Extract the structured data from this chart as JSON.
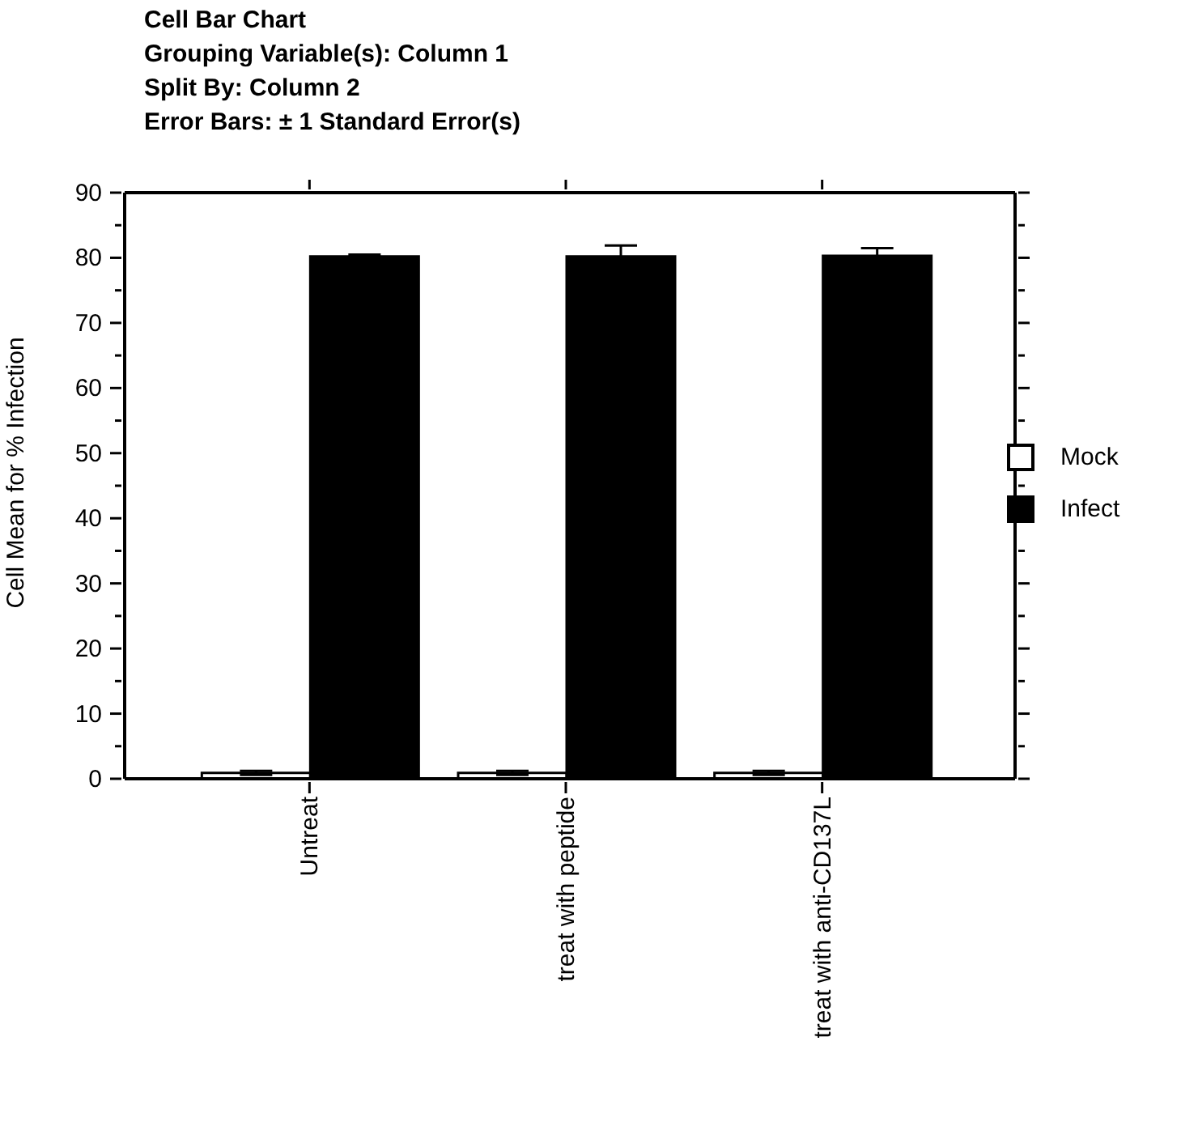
{
  "chart_data": {
    "type": "bar",
    "title": "Cell Bar Chart",
    "subtitle": "Grouping Variable(s): Column 1\nSplit By: Column 2\nError Bars: ± 1 Standard Error(s)",
    "ylabel": "Cell Mean for % Infection",
    "categories": [
      "Untreat",
      "treat with peptide",
      "treat with anti-CD137L"
    ],
    "series": [
      {
        "name": "Mock",
        "color": "#ffffff",
        "values": [
          0.9,
          0.9,
          0.9
        ],
        "errors": [
          0.3,
          0.3,
          0.3
        ]
      },
      {
        "name": "Infect",
        "color": "#000000",
        "values": [
          80.2,
          80.2,
          80.3
        ],
        "errors": [
          0.3,
          1.7,
          1.2
        ]
      }
    ],
    "ylim": [
      0,
      90
    ],
    "yticks": [
      0,
      {
        "value": 5,
        "label": null
      },
      10,
      {
        "value": 15,
        "label": null
      },
      20,
      {
        "value": 25,
        "label": null
      },
      30,
      {
        "value": 35,
        "label": null
      },
      40,
      {
        "value": 45,
        "label": null
      },
      50,
      {
        "value": 55,
        "label": null
      },
      60,
      {
        "value": 65,
        "label": null
      },
      70,
      {
        "value": 75,
        "label": null
      },
      80,
      {
        "value": 85,
        "label": null
      },
      90
    ],
    "grid": false,
    "legend": "right"
  }
}
